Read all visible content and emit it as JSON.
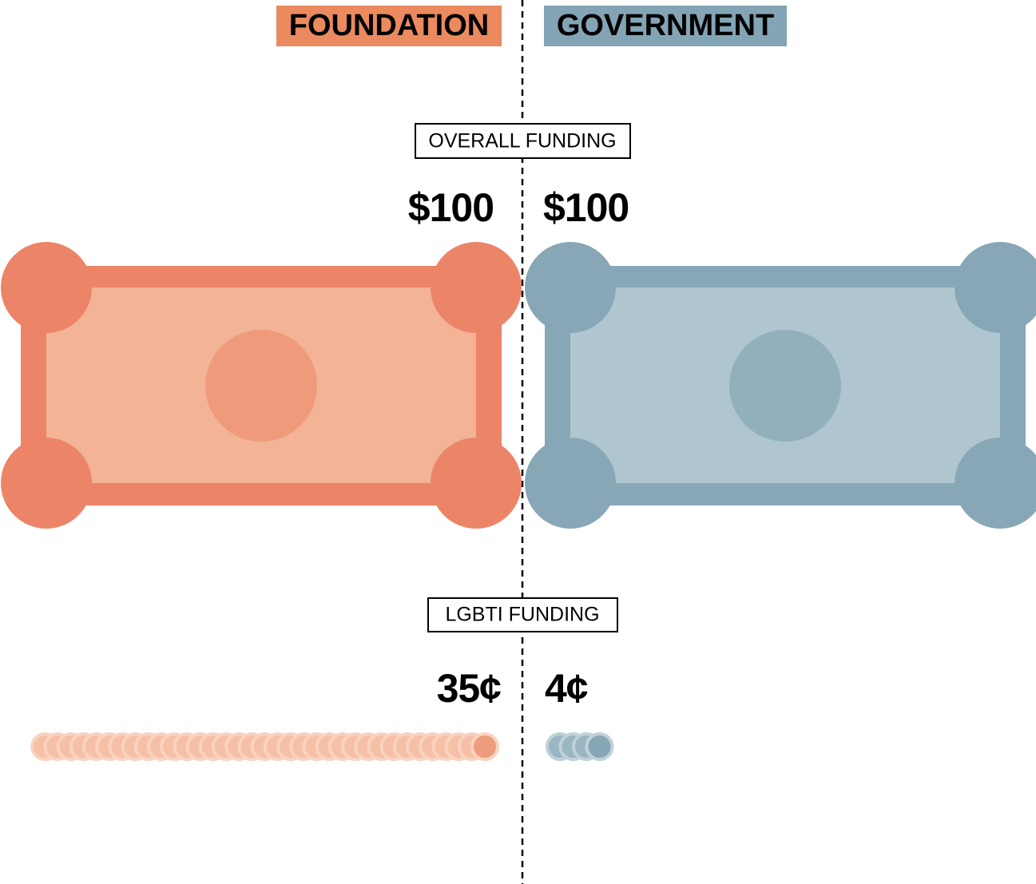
{
  "header": {
    "foundation": "FOUNDATION",
    "government": "GOVERNMENT"
  },
  "overall": {
    "label": "OVERALL FUNDING",
    "values": [
      100,
      100
    ],
    "value_labels": [
      "$100",
      "$100"
    ]
  },
  "lgbti": {
    "label": "LGBTI FUNDING",
    "values": [
      35,
      4
    ],
    "value_labels": [
      "35¢",
      "4¢"
    ]
  },
  "colors": [
    "#ec8468",
    "#87a7b6"
  ]
}
